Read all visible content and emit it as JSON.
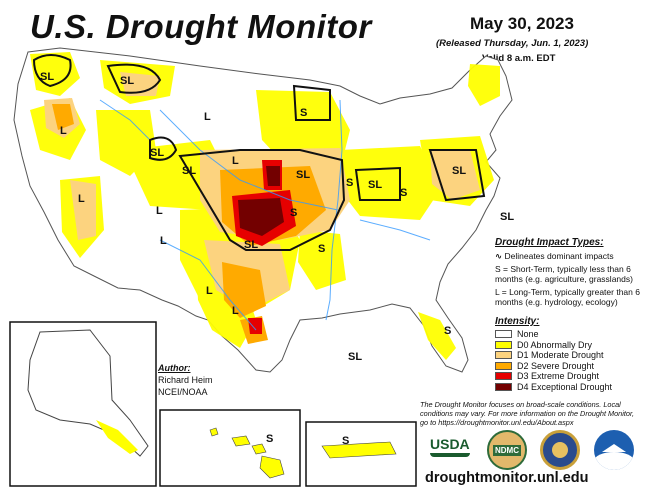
{
  "title": "U.S. Drought Monitor",
  "date": "May 30, 2023",
  "released": "(Released Thursday, Jun. 1, 2023)",
  "valid": "Valid 8 a.m. EDT",
  "impact": {
    "heading": "Drought Impact Types:",
    "delineates": "Delineates dominant impacts",
    "short_term": "S = Short-Term, typically less than 6 months (e.g. agriculture, grasslands)",
    "long_term": "L = Long-Term, typically greater than 6 months (e.g. hydrology, ecology)"
  },
  "intensity": {
    "heading": "Intensity:",
    "levels": [
      {
        "label": "None",
        "color": "#ffffff"
      },
      {
        "label": "D0 Abnormally Dry",
        "color": "#ffff00"
      },
      {
        "label": "D1 Moderate Drought",
        "color": "#fcd37f"
      },
      {
        "label": "D2 Severe Drought",
        "color": "#ffaa00"
      },
      {
        "label": "D3 Extreme Drought",
        "color": "#e60000"
      },
      {
        "label": "D4 Exceptional Drought",
        "color": "#730000"
      }
    ]
  },
  "author": {
    "heading": "Author:",
    "name": "Richard Heim",
    "org": "NCEI/NOAA"
  },
  "note": "The Drought Monitor focuses on broad-scale conditions. Local conditions may vary. For more information on the Drought Monitor, go to https://droughtmonitor.unl.edu/About.aspx",
  "url": "droughtmonitor.unl.edu",
  "logos": {
    "usda": "USDA",
    "ndmc": "NDMC"
  },
  "map_labels": {
    "sl": "SL",
    "s": "S",
    "l": "L"
  }
}
